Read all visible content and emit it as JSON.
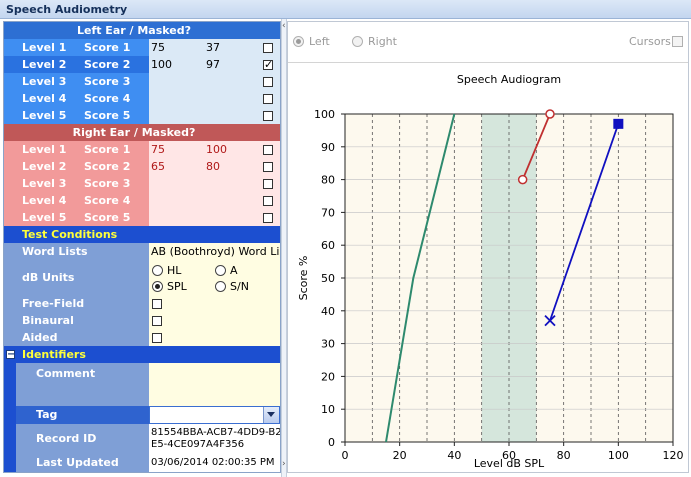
{
  "window": {
    "title": "Speech Audiometry"
  },
  "left_ear": {
    "header": "Left Ear / Masked?",
    "rows": [
      {
        "level": "Level 1",
        "score": "Score 1",
        "v1": "75",
        "v2": "37",
        "masked": false
      },
      {
        "level": "Level 2",
        "score": "Score 2",
        "v1": "100",
        "v2": "97",
        "masked": true
      },
      {
        "level": "Level 3",
        "score": "Score 3",
        "v1": "",
        "v2": "",
        "masked": false
      },
      {
        "level": "Level 4",
        "score": "Score 4",
        "v1": "",
        "v2": "",
        "masked": false
      },
      {
        "level": "Level 5",
        "score": "Score 5",
        "v1": "",
        "v2": "",
        "masked": false
      }
    ]
  },
  "right_ear": {
    "header": "Right Ear / Masked?",
    "rows": [
      {
        "level": "Level 1",
        "score": "Score 1",
        "v1": "75",
        "v2": "100",
        "masked": false
      },
      {
        "level": "Level 2",
        "score": "Score 2",
        "v1": "65",
        "v2": "80",
        "masked": false
      },
      {
        "level": "Level 3",
        "score": "Score 3",
        "v1": "",
        "v2": "",
        "masked": false
      },
      {
        "level": "Level 4",
        "score": "Score 4",
        "v1": "",
        "v2": "",
        "masked": false
      },
      {
        "level": "Level 5",
        "score": "Score 5",
        "v1": "",
        "v2": "",
        "masked": false
      }
    ]
  },
  "test_conditions": {
    "header": "Test Conditions",
    "word_lists_label": "Word Lists",
    "word_lists_value": "AB (Boothroyd) Word Lists",
    "db_units_label": "dB Units",
    "db_units_options": [
      "HL",
      "A",
      "SPL",
      "S/N"
    ],
    "db_units_selected": "SPL",
    "free_field_label": "Free-Field",
    "binaural_label": "Binaural",
    "aided_label": "Aided"
  },
  "identifiers": {
    "header": "Identifiers",
    "collapse_glyph": "−",
    "comment_label": "Comment",
    "comment_value": "",
    "tag_label": "Tag",
    "tag_value": "",
    "record_id_label": "Record ID",
    "record_id_line1": "81554BBA-ACB7-4DD9-B2",
    "record_id_line2": "E5-4CE097A4F356",
    "last_updated_label": "Last Updated",
    "last_updated_value": "03/06/2014 02:00:35 PM"
  },
  "toolbar": {
    "left_label": "Left",
    "right_label": "Right",
    "selected": "Left",
    "cursors_label": "Cursors",
    "cursors_checked": false
  },
  "colors": {
    "left_blue": "#1e5fd8",
    "right_red": "#c03030",
    "band_green": "#2e8a6e"
  },
  "chart_data": {
    "type": "line",
    "title": "Speech Audiogram",
    "xlabel": "Level dB SPL",
    "ylabel": "Score %",
    "xlim": [
      0,
      120
    ],
    "ylim": [
      0,
      100
    ],
    "xticks": [
      "0",
      "20",
      "40",
      "60",
      "80",
      "100",
      "120"
    ],
    "yticks": [
      "0",
      "10",
      "20",
      "30",
      "40",
      "50",
      "60",
      "70",
      "80",
      "90",
      "100"
    ],
    "shaded_band": [
      50,
      70
    ],
    "series": [
      {
        "color": "#2e8a6e",
        "points": [
          [
            15,
            0
          ],
          [
            25,
            50
          ],
          [
            40,
            100
          ]
        ]
      },
      {
        "color": "#c03030",
        "marker": "circle",
        "points": [
          [
            65,
            80
          ],
          [
            75,
            100
          ]
        ]
      },
      {
        "color": "#1010c0",
        "marker": "x-then-square",
        "points": [
          [
            75,
            37
          ],
          [
            100,
            97
          ]
        ]
      }
    ]
  }
}
